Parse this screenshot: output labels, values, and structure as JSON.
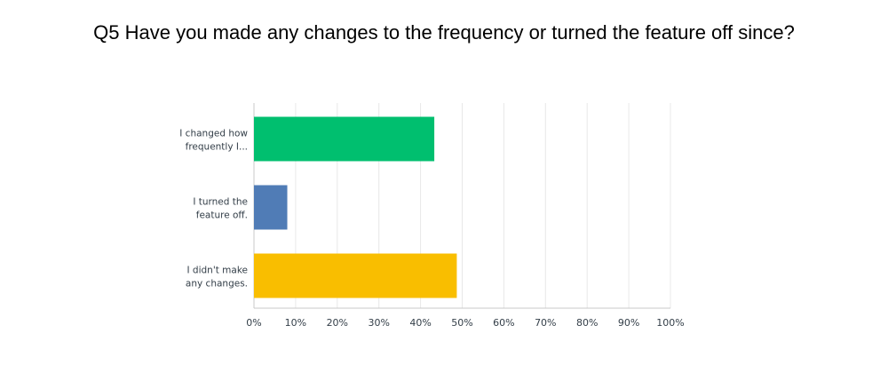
{
  "chart_data": {
    "type": "bar",
    "orientation": "horizontal",
    "title": "Q5 Have you made any changes to the frequency or turned the feature off since?",
    "categories": [
      [
        "I changed how",
        "frequently I..."
      ],
      [
        "I turned the",
        "feature off."
      ],
      [
        "I didn't make",
        "any changes."
      ]
    ],
    "values": [
      43.3,
      8.0,
      48.7
    ],
    "colors": [
      "#00bf6f",
      "#507cb6",
      "#f9be00"
    ],
    "xlim": [
      0,
      100
    ],
    "xticks": [
      "0%",
      "10%",
      "20%",
      "30%",
      "40%",
      "50%",
      "60%",
      "70%",
      "80%",
      "90%",
      "100%"
    ],
    "xlabel": "",
    "ylabel": "",
    "grid": true
  }
}
